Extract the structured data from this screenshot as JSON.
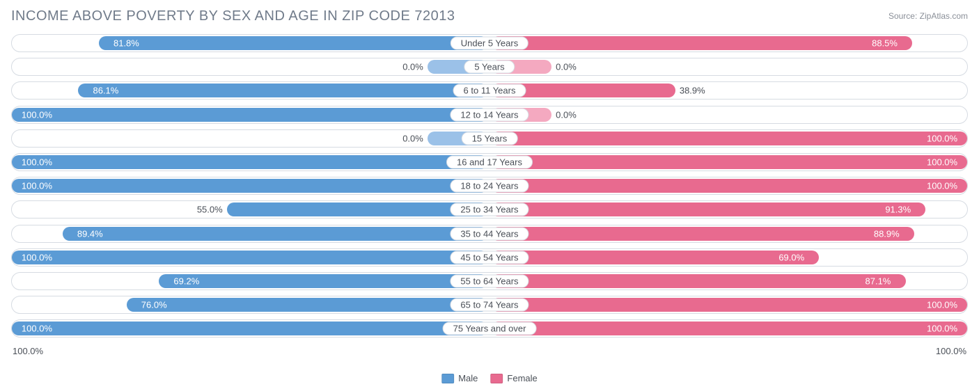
{
  "title": "INCOME ABOVE POVERTY BY SEX AND AGE IN ZIP CODE 72013",
  "source": "Source: ZipAtlas.com",
  "axis": {
    "left": "100.0%",
    "right": "100.0%",
    "max": 100.0
  },
  "legend": {
    "male": {
      "label": "Male",
      "color": "#5b9bd5"
    },
    "female": {
      "label": "Female",
      "color": "#e86a8f"
    }
  },
  "style": {
    "male_bar_color": "#5b9bd5",
    "female_bar_color": "#e86a8f",
    "zero_male_color": "#9bc1e8",
    "zero_female_color": "#f4a9c0",
    "zero_stub_pct": 13,
    "track_border": "#d6dbe2",
    "value_on_bar_color": "#ffffff",
    "value_off_bar_color": "#4a4f57",
    "title_color": "#707b8a",
    "label_font_size": 13,
    "title_font_size": 20,
    "inside_threshold": 60
  },
  "rows": [
    {
      "category": "Under 5 Years",
      "male": 81.8,
      "female": 88.5
    },
    {
      "category": "5 Years",
      "male": 0.0,
      "female": 0.0
    },
    {
      "category": "6 to 11 Years",
      "male": 86.1,
      "female": 38.9
    },
    {
      "category": "12 to 14 Years",
      "male": 100.0,
      "female": 0.0
    },
    {
      "category": "15 Years",
      "male": 0.0,
      "female": 100.0
    },
    {
      "category": "16 and 17 Years",
      "male": 100.0,
      "female": 100.0
    },
    {
      "category": "18 to 24 Years",
      "male": 100.0,
      "female": 100.0
    },
    {
      "category": "25 to 34 Years",
      "male": 55.0,
      "female": 91.3
    },
    {
      "category": "35 to 44 Years",
      "male": 89.4,
      "female": 88.9
    },
    {
      "category": "45 to 54 Years",
      "male": 100.0,
      "female": 69.0
    },
    {
      "category": "55 to 64 Years",
      "male": 69.2,
      "female": 87.1
    },
    {
      "category": "65 to 74 Years",
      "male": 76.0,
      "female": 100.0
    },
    {
      "category": "75 Years and over",
      "male": 100.0,
      "female": 100.0
    }
  ]
}
